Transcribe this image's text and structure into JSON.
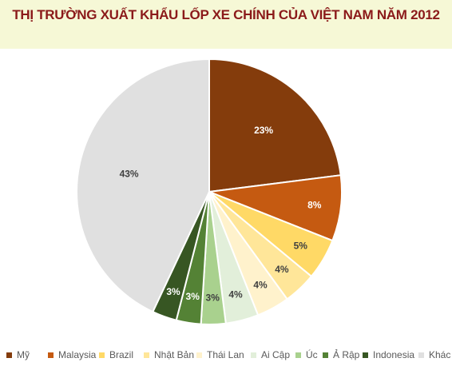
{
  "chart_data": {
    "type": "pie",
    "title": "THỊ TRƯỜNG XUẤT KHẨU LỐP XE CHÍNH CỦA VIỆT NAM NĂM 2012",
    "categories": [
      "Mỹ",
      "Malaysia",
      "Brazil",
      "Nhật Bản",
      "Thái Lan",
      "Ai Cập",
      "Úc",
      "Ả Rập",
      "Indonesia",
      "Khác"
    ],
    "values": [
      23,
      8,
      5,
      4,
      4,
      4,
      3,
      3,
      3,
      43
    ],
    "labels": [
      "23%",
      "8%",
      "5%",
      "4%",
      "4%",
      "4%",
      "3%",
      "3%",
      "3%",
      "43%"
    ],
    "colors": [
      "#843c0c",
      "#c55a11",
      "#ffd966",
      "#ffe699",
      "#fff2cc",
      "#e2efda",
      "#a9d18e",
      "#548235",
      "#375623",
      "#e0e0e0"
    ],
    "legend_position": "bottom"
  }
}
